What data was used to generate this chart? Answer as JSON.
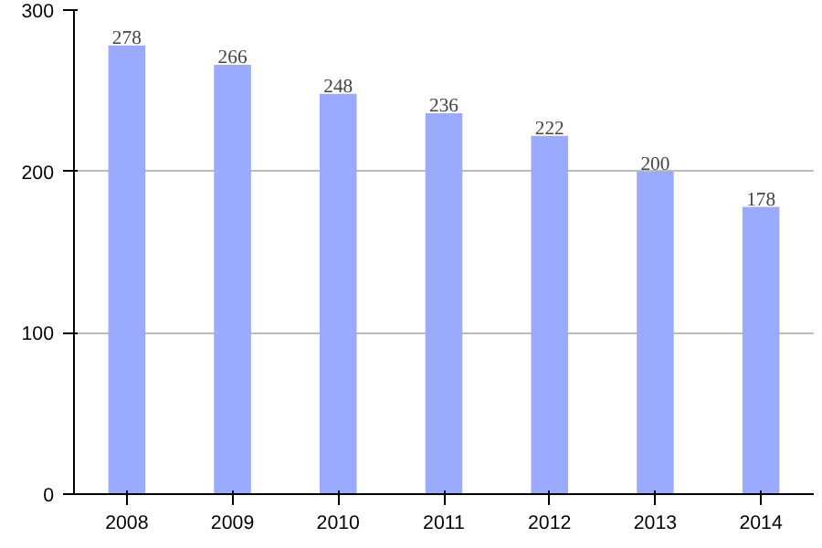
{
  "chart_data": {
    "type": "bar",
    "categories": [
      "2008",
      "2009",
      "2010",
      "2011",
      "2012",
      "2013",
      "2014"
    ],
    "values": [
      278,
      266,
      248,
      236,
      222,
      200,
      178
    ],
    "color": "#99aaff",
    "ylim": [
      0,
      300
    ],
    "yticks": [
      0,
      100,
      200,
      300
    ],
    "grid": "y",
    "data_labels": true
  }
}
